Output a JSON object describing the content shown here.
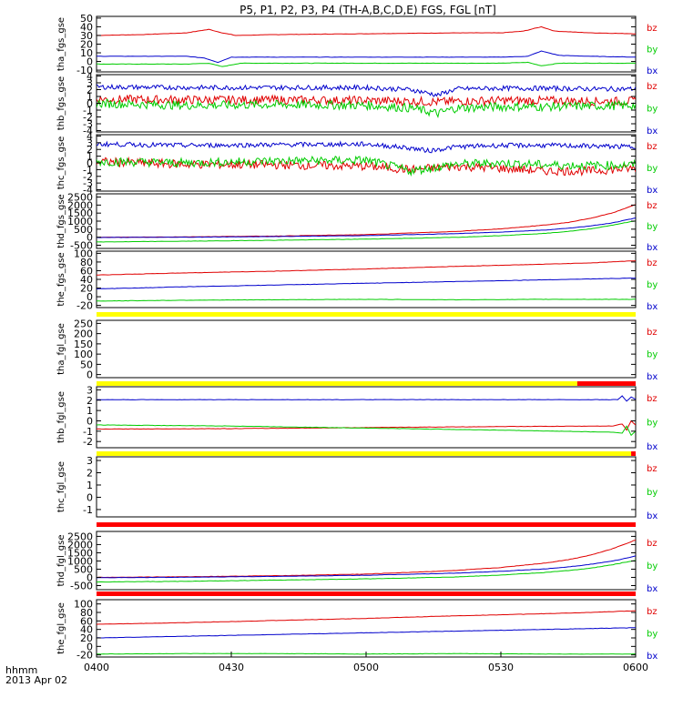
{
  "chart_data": {
    "type": "line",
    "title": "P5, P1, P2, P3, P4 (TH-A,B,C,D,E) FGS, FGL [nT]",
    "date_label": "2013 Apr 02",
    "time_format_label": "hhmm",
    "x_tick_labels": [
      "0400",
      "0430",
      "0500",
      "0530",
      "0600"
    ],
    "x_range_minutes": [
      0,
      120
    ],
    "component_colors": {
      "bz": "#e00000",
      "by": "#00cc00",
      "bx": "#0000cc"
    },
    "panels": [
      {
        "ylabel": "tha_fgs_gse",
        "ylim": [
          -12,
          52
        ],
        "y_ticks": [
          -10,
          0,
          10,
          20,
          30,
          40,
          50
        ],
        "y_tick_labels": [
          "-10",
          "0",
          "10",
          "20",
          "30",
          "40",
          "50"
        ],
        "components": [
          "bz",
          "by",
          "bx"
        ],
        "series": [
          {
            "name": "bz",
            "x": [
              0,
              10,
              20,
              25,
              28,
              31,
              40,
              60,
              80,
              90,
              95,
              99,
              102,
              110,
              120
            ],
            "values": [
              30,
              31,
              33,
              37,
              33,
              30,
              31,
              32,
              33,
              33,
              35,
              40,
              35,
              33,
              32
            ]
          },
          {
            "name": "by",
            "x": [
              0,
              10,
              20,
              25,
              28,
              32,
              40,
              60,
              80,
              90,
              96,
              99,
              103,
              110,
              120
            ],
            "values": [
              -3,
              -3,
              -3,
              -2,
              -6,
              -2,
              -2,
              -2,
              -2,
              -2,
              -1,
              -5,
              -2,
              -2,
              -2
            ]
          },
          {
            "name": "bx",
            "x": [
              0,
              10,
              20,
              24,
              27,
              30,
              40,
              60,
              80,
              90,
              96,
              99,
              103,
              110,
              120
            ],
            "values": [
              6,
              6,
              6,
              4,
              -1,
              5,
              5,
              5,
              5,
              5,
              6,
              12,
              7,
              6,
              5
            ]
          }
        ]
      },
      {
        "ylabel": "thb_fgs_gse",
        "ylim": [
          -4.2,
          4.2
        ],
        "y_ticks": [
          -4,
          -3,
          -2,
          -1,
          0,
          1,
          2,
          3,
          4
        ],
        "y_tick_labels": [
          "-4",
          "-3",
          "-2",
          "-1",
          "0",
          "1",
          "2",
          "3",
          "4"
        ],
        "components": [
          "bz",
          "by",
          "bx"
        ],
        "series": [
          {
            "name": "bz",
            "x": [
              0,
              20,
              40,
              60,
              70,
              76,
              80,
              90,
              100,
              110,
              120
            ],
            "values": [
              0.6,
              0.5,
              0.5,
              0.4,
              0.3,
              0.2,
              0.3,
              0.4,
              0.4,
              0.3,
              0.3
            ]
          },
          {
            "name": "by",
            "x": [
              0,
              20,
              40,
              60,
              70,
              76,
              80,
              90,
              100,
              110,
              120
            ],
            "values": [
              0.0,
              -0.3,
              -0.2,
              -0.3,
              -0.7,
              -1.5,
              -0.7,
              -0.5,
              -0.5,
              -0.4,
              -0.3
            ]
          },
          {
            "name": "bx",
            "x": [
              0,
              20,
              40,
              60,
              70,
              76,
              80,
              90,
              100,
              110,
              120
            ],
            "values": [
              2.4,
              2.3,
              2.3,
              2.3,
              2.0,
              1.2,
              2.1,
              2.2,
              2.2,
              2.1,
              2.1
            ]
          }
        ]
      },
      {
        "ylabel": "thc_fgs_gse",
        "ylim": [
          -4.2,
          4.2
        ],
        "y_ticks": [
          -4,
          -3,
          -2,
          -1,
          0,
          1,
          2,
          3,
          4
        ],
        "y_tick_labels": [
          "-4",
          "-3",
          "-2",
          "-1",
          "0",
          "1",
          "2",
          "3",
          "4"
        ],
        "components": [
          "bz",
          "by",
          "bx"
        ],
        "series": [
          {
            "name": "bz",
            "x": [
              0,
              20,
              40,
              60,
              70,
              80,
              90,
              100,
              110,
              120
            ],
            "values": [
              0.2,
              -0.2,
              -0.3,
              -0.5,
              -1.0,
              -0.5,
              -0.8,
              -1.2,
              -1.2,
              -0.8
            ]
          },
          {
            "name": "by",
            "x": [
              0,
              20,
              40,
              60,
              70,
              80,
              90,
              100,
              110,
              120
            ],
            "values": [
              0.2,
              0.0,
              0.3,
              0.4,
              -1.2,
              -0.2,
              0.0,
              -0.3,
              -0.4,
              -0.3
            ]
          },
          {
            "name": "bx",
            "x": [
              0,
              20,
              40,
              60,
              70,
              74,
              80,
              90,
              100,
              110,
              120
            ],
            "values": [
              2.8,
              2.6,
              2.7,
              2.8,
              2.2,
              1.8,
              2.4,
              2.6,
              2.6,
              2.5,
              2.4
            ]
          }
        ]
      },
      {
        "ylabel": "thd_fgs_gse",
        "ylim": [
          -700,
          2700
        ],
        "y_ticks": [
          -500,
          0,
          500,
          1000,
          1500,
          2000,
          2500
        ],
        "y_tick_labels": [
          "-500",
          "0",
          "500",
          "1000",
          "1500",
          "2000",
          "2500"
        ],
        "components": [
          "bz",
          "by",
          "bx"
        ],
        "series": [
          {
            "name": "bz",
            "x": [
              0,
              20,
              40,
              60,
              80,
              90,
              100,
              105,
              110,
              115,
              120
            ],
            "values": [
              -10,
              20,
              70,
              160,
              360,
              520,
              760,
              920,
              1180,
              1520,
              2040
            ]
          },
          {
            "name": "by",
            "x": [
              0,
              20,
              40,
              60,
              80,
              90,
              100,
              105,
              110,
              115,
              120
            ],
            "values": [
              -300,
              -250,
              -190,
              -120,
              -10,
              100,
              240,
              360,
              520,
              760,
              1020
            ]
          },
          {
            "name": "bx",
            "x": [
              0,
              20,
              40,
              60,
              80,
              90,
              100,
              105,
              110,
              115,
              120
            ],
            "values": [
              -20,
              0,
              40,
              100,
              220,
              320,
              450,
              560,
              700,
              900,
              1200
            ]
          }
        ]
      },
      {
        "ylabel": "the_fgs_gse",
        "ylim": [
          -25,
          105
        ],
        "y_ticks": [
          -20,
          0,
          20,
          40,
          60,
          80,
          100
        ],
        "y_tick_labels": [
          "-20",
          "0",
          "20",
          "40",
          "60",
          "80",
          "100"
        ],
        "components": [
          "bz",
          "by",
          "bx"
        ],
        "series": [
          {
            "name": "bz",
            "x": [
              0,
              20,
              40,
              60,
              80,
              100,
              110,
              120
            ],
            "values": [
              50,
              55,
              59,
              64,
              70,
              75,
              78,
              83
            ]
          },
          {
            "name": "by",
            "x": [
              0,
              20,
              40,
              60,
              80,
              100,
              120
            ],
            "values": [
              -10,
              -8,
              -7,
              -6,
              -7,
              -6,
              -6
            ]
          },
          {
            "name": "bx",
            "x": [
              0,
              20,
              40,
              60,
              80,
              100,
              120
            ],
            "values": [
              18,
              23,
              27,
              31,
              35,
              39,
              43
            ]
          }
        ]
      },
      {
        "ylabel": "tha_fgl_gse",
        "ylim": [
          -15,
          265
        ],
        "y_ticks": [
          0,
          50,
          100,
          150,
          200,
          250
        ],
        "y_tick_labels": [
          "0",
          "50",
          "100",
          "150",
          "200",
          "250"
        ],
        "components": [
          "bz",
          "by",
          "bx"
        ],
        "series": []
      },
      {
        "ylabel": "thb_fgl_gse",
        "ylim": [
          -2.6,
          3.3
        ],
        "y_ticks": [
          -2,
          -1,
          0,
          1,
          2,
          3
        ],
        "y_tick_labels": [
          "-2",
          "-1",
          "0",
          "1",
          "2",
          "3"
        ],
        "components": [
          "bz",
          "by",
          "bx"
        ],
        "series": [
          {
            "name": "bz",
            "x": [
              0,
              30,
              60,
              90,
              115,
              117,
              118,
              119,
              120
            ],
            "values": [
              -0.8,
              -0.75,
              -0.65,
              -0.55,
              -0.5,
              -0.3,
              -0.9,
              0.0,
              -0.4
            ]
          },
          {
            "name": "by",
            "x": [
              0,
              30,
              60,
              90,
              115,
              117,
              118,
              119,
              120
            ],
            "values": [
              -0.4,
              -0.5,
              -0.7,
              -0.9,
              -1.1,
              -1.2,
              -0.5,
              -1.4,
              -1.0
            ]
          },
          {
            "name": "bx",
            "x": [
              0,
              30,
              60,
              90,
              116,
              117,
              118,
              119,
              120
            ],
            "values": [
              2.05,
              2.05,
              2.05,
              2.05,
              2.05,
              2.4,
              1.9,
              2.3,
              2.1
            ]
          }
        ]
      },
      {
        "ylabel": "thc_fgl_gse",
        "ylim": [
          -1.6,
          3.3
        ],
        "y_ticks": [
          -1,
          0,
          1,
          2,
          3
        ],
        "y_tick_labels": [
          "-1",
          "0",
          "1",
          "2",
          "3"
        ],
        "components": [
          "bz",
          "by",
          "bx"
        ],
        "series": []
      },
      {
        "ylabel": "thd_fgl_gse",
        "ylim": [
          -750,
          2800
        ],
        "y_ticks": [
          -500,
          0,
          500,
          1000,
          1500,
          2000,
          2500
        ],
        "y_tick_labels": [
          "-500",
          "0",
          "500",
          "1000",
          "1500",
          "2000",
          "2500"
        ],
        "components": [
          "bz",
          "by",
          "bx"
        ],
        "series": [
          {
            "name": "bz",
            "x": [
              0,
              20,
              40,
              60,
              80,
              90,
              100,
              105,
              110,
              115,
              120
            ],
            "values": [
              0,
              40,
              100,
              200,
              420,
              600,
              880,
              1080,
              1360,
              1760,
              2280
            ]
          },
          {
            "name": "by",
            "x": [
              0,
              20,
              40,
              60,
              80,
              90,
              100,
              105,
              110,
              115,
              120
            ],
            "values": [
              -280,
              -240,
              -170,
              -90,
              30,
              140,
              300,
              420,
              560,
              780,
              1040
            ]
          },
          {
            "name": "bx",
            "x": [
              0,
              20,
              40,
              60,
              80,
              90,
              100,
              105,
              110,
              115,
              120
            ],
            "values": [
              -20,
              10,
              60,
              130,
              260,
              370,
              520,
              640,
              800,
              1000,
              1300
            ]
          }
        ]
      },
      {
        "ylabel": "the_fgl_gse",
        "ylim": [
          -25,
          110
        ],
        "y_ticks": [
          -20,
          0,
          20,
          40,
          60,
          80,
          100
        ],
        "y_tick_labels": [
          "-20",
          "0",
          "20",
          "40",
          "60",
          "80",
          "100"
        ],
        "components": [
          "bz",
          "by",
          "bx"
        ],
        "series": [
          {
            "name": "bz",
            "x": [
              0,
              20,
              40,
              60,
              80,
              100,
              110,
              120
            ],
            "values": [
              52,
              56,
              61,
              66,
              72,
              77,
              80,
              84
            ]
          },
          {
            "name": "by",
            "x": [
              0,
              20,
              40,
              60,
              80,
              100,
              120
            ],
            "values": [
              -18,
              -17,
              -17,
              -18,
              -17,
              -18,
              -18
            ]
          },
          {
            "name": "bx",
            "x": [
              0,
              20,
              40,
              60,
              80,
              100,
              120
            ],
            "values": [
              20,
              24,
              28,
              32,
              36,
              40,
              44
            ]
          }
        ]
      }
    ],
    "status_bars": [
      {
        "label_after_panel": 4,
        "segments": [
          {
            "x": [
              0,
              120
            ],
            "color": "#ffff00"
          }
        ]
      },
      {
        "label_after_panel": 5,
        "segments": [
          {
            "x": [
              0,
              107
            ],
            "color": "#ffff00"
          },
          {
            "x": [
              107,
              120
            ],
            "color": "#ff0000"
          }
        ]
      },
      {
        "label_after_panel": 6,
        "segments": [
          {
            "x": [
              0,
              119
            ],
            "color": "#ffff00"
          },
          {
            "x": [
              119,
              120
            ],
            "color": "#ff0000"
          }
        ]
      },
      {
        "label_after_panel": 7,
        "segments": [
          {
            "x": [
              0,
              120
            ],
            "color": "#ff0000"
          }
        ]
      },
      {
        "label_after_panel": 8,
        "segments": [
          {
            "x": [
              0,
              120
            ],
            "color": "#ff0000"
          }
        ]
      }
    ]
  }
}
